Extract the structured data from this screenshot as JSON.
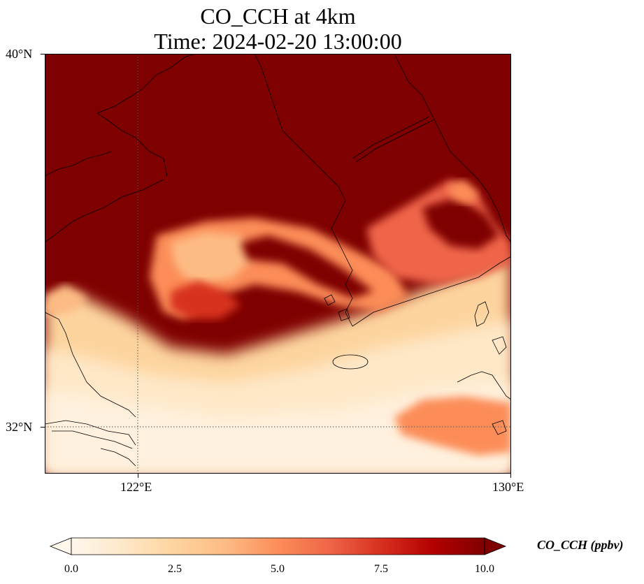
{
  "title": {
    "line1": "CO_CCH at 4km",
    "line2": "Time: 2024-02-20 13:00:00"
  },
  "axes": {
    "lat_ticks": [
      {
        "value": 40,
        "label": "40°N"
      },
      {
        "value": 32,
        "label": "32°N"
      }
    ],
    "lon_ticks": [
      {
        "value": 122,
        "label": "122°E"
      },
      {
        "value": 130,
        "label": "130°E"
      }
    ],
    "extent": {
      "lon_min": 120,
      "lon_max": 130,
      "lat_min": 31,
      "lat_max": 40
    },
    "gridlines": "dotted"
  },
  "colorbar": {
    "label": "CO_CCH (ppbv)",
    "colormap": "OrRd",
    "vmin": 0,
    "vmax": 10,
    "extend": "both",
    "ticks": [
      {
        "value": 0,
        "label": "0.0"
      },
      {
        "value": 2.5,
        "label": "2.5"
      },
      {
        "value": 5,
        "label": "5.0"
      },
      {
        "value": 7.5,
        "label": "7.5"
      },
      {
        "value": 10,
        "label": "10.0"
      }
    ],
    "colors": [
      "#fff7ec",
      "#fee8c8",
      "#fdd49e",
      "#fdbb84",
      "#fc8d59",
      "#ef6548",
      "#d7301f",
      "#b30000",
      "#7f0000"
    ]
  },
  "chart_data": {
    "type": "heatmap",
    "variable": "CO_CCH",
    "units": "ppbv",
    "description_values": "high (~10) over north / Korean peninsula, moderate bands (3-8) mid-latitudes, low (0-3) south",
    "features": [
      {
        "name": "Jeju",
        "lon": 126.5,
        "lat": 33.4
      }
    ]
  }
}
